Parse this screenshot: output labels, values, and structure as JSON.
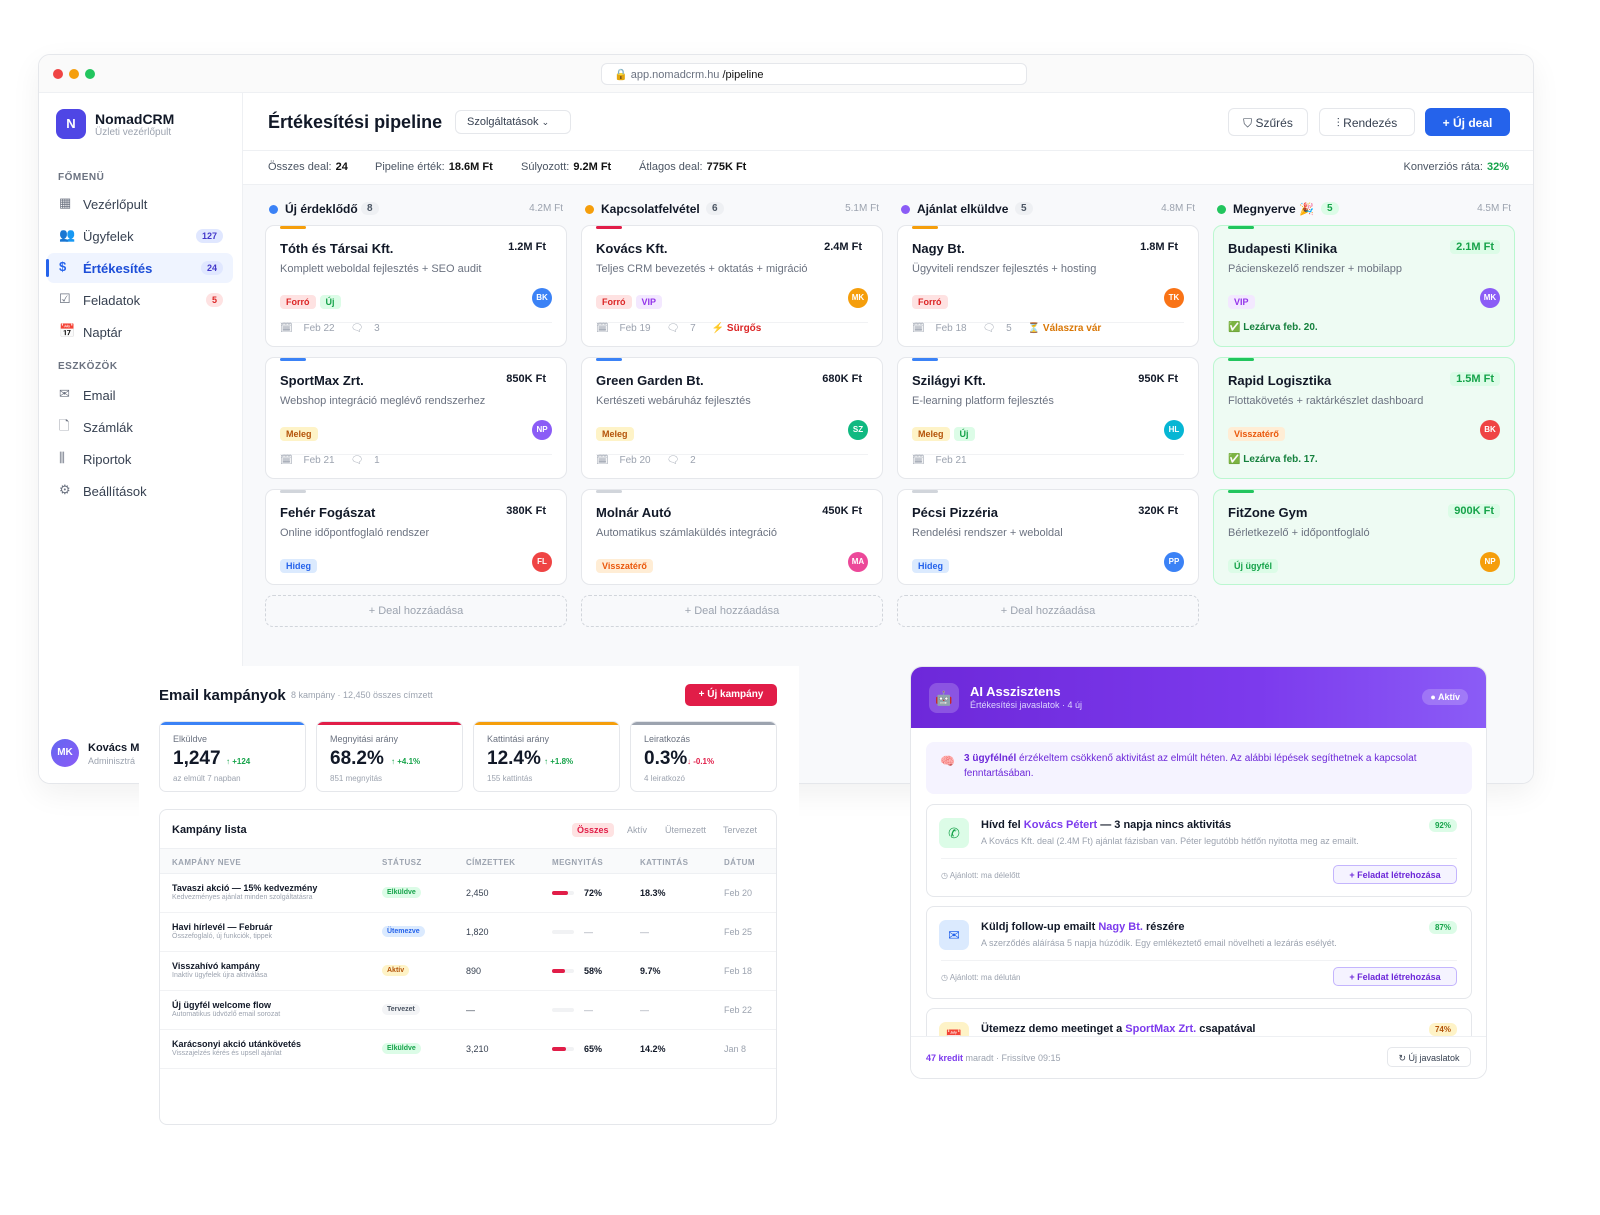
{
  "browser": {
    "url_host": "app.nomadcrm.hu",
    "url_path": "/pipeline"
  },
  "sidebar": {
    "logo_letter": "N",
    "brand": "NomadCRM",
    "brand_sub": "Üzleti vezérlőpult",
    "section_main": "FŐMENÜ",
    "section_tools": "ESZKÖZÖK",
    "main_items": [
      {
        "label": "Vezérlőpult",
        "icon": "grid-icon"
      },
      {
        "label": "Ügyfelek",
        "icon": "users-icon",
        "count": "127"
      },
      {
        "label": "Értékesítés",
        "icon": "dollar-icon",
        "count": "24",
        "active": true
      },
      {
        "label": "Feladatok",
        "icon": "checkbox-icon",
        "count": "5"
      },
      {
        "label": "Naptár",
        "icon": "calendar-icon"
      }
    ],
    "tool_items": [
      {
        "label": "Email",
        "icon": "mail-icon"
      },
      {
        "label": "Számlák",
        "icon": "file-icon"
      },
      {
        "label": "Riportok",
        "icon": "chart-icon"
      },
      {
        "label": "Beállítások",
        "icon": "gear-icon"
      }
    ],
    "user": {
      "initials": "MK",
      "name": "Kovács M",
      "role": "Adminisztrá"
    }
  },
  "header": {
    "title": "Értékesítési pipeline",
    "select": "Szolgáltatások",
    "filter_btn": "Szűrés",
    "sort_btn": "Rendezés",
    "new_deal_btn": "Új deal"
  },
  "stats": {
    "total_label": "Összes deal:",
    "total": "24",
    "pipeline_label": "Pipeline érték:",
    "pipeline": "18.6M Ft",
    "weighted_label": "Súlyozott:",
    "weighted": "9.2M Ft",
    "avg_label": "Átlagos deal:",
    "avg": "775K Ft",
    "conv_label": "Konverziós ráta:",
    "conv": "32%"
  },
  "colors": {
    "blue": "#3b82f6",
    "orange": "#f59e0b",
    "purple": "#8b5cf6",
    "green": "#22c55e"
  },
  "add_deal": "Deal hozzáadása",
  "columns": [
    {
      "title": "Új érdeklődő",
      "count": "8",
      "value": "4.2M Ft",
      "color": "#3b82f6",
      "cards": [
        {
          "name": "Tóth és Társai Kft.",
          "value": "1.2M Ft",
          "desc": "Komplett weboldal fejlesztés + SEO audit",
          "tags": [
            "Forró",
            "Új"
          ],
          "avatar": "BK",
          "date": "Feb 22",
          "comments": "3"
        },
        {
          "name": "SportMax Zrt.",
          "value": "850K Ft",
          "desc": "Webshop integráció meglévő rendszerhez",
          "tags": [
            "Meleg"
          ],
          "avatar": "NP",
          "date": "Feb 21",
          "comments": "1"
        },
        {
          "name": "Fehér Fogászat",
          "value": "380K Ft",
          "desc": "Online időpontfoglaló rendszer",
          "tags": [
            "Hideg"
          ],
          "avatar": "FL"
        }
      ]
    },
    {
      "title": "Kapcsolatfelvétel",
      "count": "6",
      "value": "5.1M Ft",
      "color": "#f59e0b",
      "cards": [
        {
          "name": "Kovács Kft.",
          "value": "2.4M Ft",
          "desc": "Teljes CRM bevezetés + oktatás + migráció",
          "tags": [
            "Forró",
            "VIP"
          ],
          "avatar": "MK",
          "date": "Feb 19",
          "comments": "7",
          "extra": "⚡ Sürgős"
        },
        {
          "name": "Green Garden Bt.",
          "value": "680K Ft",
          "desc": "Kertészeti webáruház fejlesztés",
          "tags": [
            "Meleg"
          ],
          "avatar": "SZ",
          "date": "Feb 20",
          "comments": "2"
        },
        {
          "name": "Molnár Autó",
          "value": "450K Ft",
          "desc": "Automatikus számlaküldés integráció",
          "tags": [
            "Visszatérő"
          ],
          "avatar": "MA"
        }
      ]
    },
    {
      "title": "Ajánlat elküldve",
      "count": "5",
      "value": "4.8M Ft",
      "color": "#8b5cf6",
      "cards": [
        {
          "name": "Nagy Bt.",
          "value": "1.8M Ft",
          "desc": "Ügyviteli rendszer fejlesztés + hosting",
          "tags": [
            "Forró"
          ],
          "avatar": "TK",
          "date": "Feb 18",
          "comments": "5",
          "extra": "⏳ Válaszra vár"
        },
        {
          "name": "Szilágyi Kft.",
          "value": "950K Ft",
          "desc": "E-learning platform fejlesztés",
          "tags": [
            "Meleg",
            "Új"
          ],
          "avatar": "HL",
          "date": "Feb 21"
        },
        {
          "name": "Pécsi Pizzéria",
          "value": "320K Ft",
          "desc": "Rendelési rendszer + weboldal",
          "tags": [
            "Hideg"
          ],
          "avatar": "PP"
        }
      ]
    },
    {
      "title": "Megnyerve 🎉",
      "count": "5",
      "value": "4.5M Ft",
      "color": "#22c55e",
      "cards": [
        {
          "name": "Budapesti Klinika",
          "value": "2.1M Ft",
          "desc": "Pácienskezelő rendszer + mobilapp",
          "tags": [
            "VIP"
          ],
          "avatar": "MK",
          "closed": "✅ Lezárva feb. 20."
        },
        {
          "name": "Rapid Logisztika",
          "value": "1.5M Ft",
          "desc": "Flottakövetés + raktárkészlet dashboard",
          "tags": [
            "Visszatérő"
          ],
          "avatar": "BK",
          "closed": "✅ Lezárva feb. 17."
        },
        {
          "name": "FitZone Gym",
          "value": "900K Ft",
          "desc": "Bérletkezelő + időpontfoglaló",
          "tags": [
            "Új ügyfél"
          ],
          "avatar": "NP"
        }
      ]
    }
  ],
  "email": {
    "title": "Email kampányok",
    "subtitle": "8 kampány · 12,450 összes címzett",
    "new_btn": "Új kampány",
    "kpis": [
      {
        "label": "Elküldve",
        "value": "1,247",
        "delta": "↑ +124",
        "sub": "az elmúlt 7 napban",
        "color": "#3b82f6",
        "dcolor": "#16a34a"
      },
      {
        "label": "Megnyitási arány",
        "value": "68.2%",
        "delta": "↑ +4.1%",
        "sub": "851 megnyitás",
        "color": "#e11d48",
        "dcolor": "#16a34a"
      },
      {
        "label": "Kattintási arány",
        "value": "12.4%",
        "delta": "↑ +1.8%",
        "sub": "155 kattintás",
        "color": "#f59e0b",
        "dcolor": "#16a34a"
      },
      {
        "label": "Leiratkozás",
        "value": "0.3%",
        "delta": "↓ -0.1%",
        "sub": "4 leiratkozó",
        "color": "#9ca3af",
        "dcolor": "#e11d48"
      }
    ],
    "list_title": "Kampány lista",
    "filters": [
      "Összes",
      "Aktív",
      "Ütemezett",
      "Tervezet"
    ],
    "headers": [
      "KAMPÁNY NEVE",
      "STÁTUSZ",
      "CÍMZETTEK",
      "MEGNYITÁS",
      "KATTINTÁS",
      "DÁTUM"
    ],
    "rows": [
      {
        "name": "Tavaszi akció — 15% kedvezmény",
        "sub": "Kedvezményes ajánlat minden szolgáltatásra",
        "status": "Elküldve",
        "recipients": "2,450",
        "open": "72%",
        "open_frac": 0.72,
        "click": "18.3%",
        "date": "Feb 20"
      },
      {
        "name": "Havi hírlevél — Február",
        "sub": "Összefoglaló, új funkciók, tippek",
        "status": "Ütemezve",
        "recipients": "1,820",
        "open": "—",
        "open_frac": 0,
        "click": "—",
        "date": "Feb 25"
      },
      {
        "name": "Visszahívó kampány",
        "sub": "Inaktív ügyfelek újra aktiválása",
        "status": "Aktív",
        "recipients": "890",
        "open": "58%",
        "open_frac": 0.58,
        "click": "9.7%",
        "date": "Feb 18"
      },
      {
        "name": "Új ügyfél welcome flow",
        "sub": "Automatikus üdvözlő email sorozat",
        "status": "Tervezet",
        "recipients": "—",
        "open": "—",
        "open_frac": 0,
        "click": "—",
        "date": "Feb 22"
      },
      {
        "name": "Karácsonyi akció utánkövetés",
        "sub": "Visszajelzés kérés és upsell ajánlat",
        "status": "Elküldve",
        "recipients": "3,210",
        "open": "65%",
        "open_frac": 0.65,
        "click": "14.2%",
        "date": "Jan 8"
      }
    ]
  },
  "ai": {
    "title": "AI Asszisztens",
    "subtitle": "Értékesítési javaslatok · 4 új",
    "badge": "Aktív",
    "alert_bold": "3 ügyfélnél",
    "alert_text": " érzékeltem csökkenő aktivitást az elmúlt héten. Az alábbi lépések segíthetnek a kapcsolat fenntartásában.",
    "suggestions": [
      {
        "pre": "Hívd fel ",
        "hl": "Kovács Pétert",
        "post": " — 3 napja nincs aktivitás",
        "desc": "A Kovács Kft. deal (2.4M Ft) ajánlat fázisban van. Péter legutóbb hétfőn nyitotta meg az emailt.",
        "pct": "92%",
        "rec": "Ajánlott: ma délelőtt",
        "btn": "Feladat létrehozása",
        "icon": "phone-icon"
      },
      {
        "pre": "Küldj follow-up emailt ",
        "hl": "Nagy Bt.",
        "post": " részére",
        "desc": "A szerződés aláírása 5 napja húzódik. Egy emlékeztető email növelheti a lezárás esélyét.",
        "pct": "87%",
        "rec": "Ajánlott: ma délután",
        "btn": "Feladat létrehozása",
        "icon": "mail-icon"
      },
      {
        "pre": "Ütemezz demo meetinget a ",
        "hl": "SportMax Zrt.",
        "post": " csapatával",
        "pct": "74%",
        "icon": "calendar-icon"
      }
    ],
    "credits": "47 kredit",
    "credits_rest": " maradt · Frissítve 09:15",
    "refresh_btn": "Új javaslatok"
  }
}
